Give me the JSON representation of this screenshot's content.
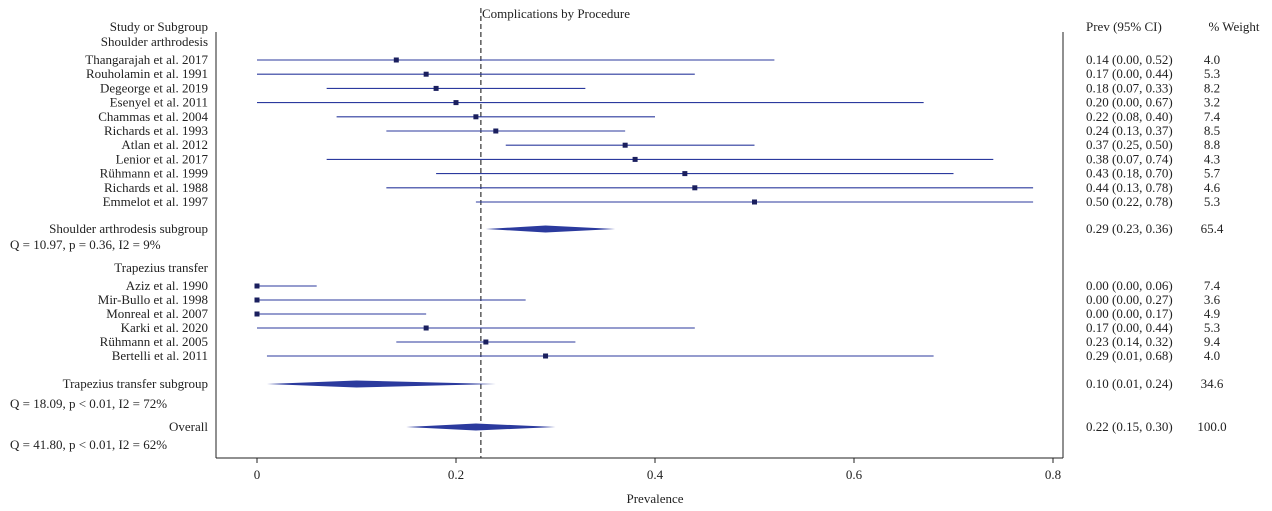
{
  "chart_data": {
    "type": "forest",
    "title": "Complications by Procedure",
    "xlabel": "Prevalence",
    "xlim": [
      -0.04,
      0.81
    ],
    "xticks": [
      0,
      0.2,
      0.4,
      0.6,
      0.8
    ],
    "xtick_labels": [
      "0",
      "0.2",
      "0.4",
      "0.6",
      "0.8"
    ],
    "reference_line": 0.225,
    "col_headers": {
      "study": "Study or Subgroup",
      "ci": "Prev (95% CI)",
      "weight": "% Weight"
    },
    "colors": {
      "line": "#2b3a9e",
      "marker": "#1a1f5e",
      "diamond": "#2b3a9e",
      "axis": "#222222"
    },
    "groups": [
      {
        "name": "Shoulder arthrodesis",
        "studies": [
          {
            "label": "Thangarajah et al. 2017",
            "est": 0.14,
            "lo": 0.0,
            "hi": 0.52,
            "ci_text": "0.14 (0.00, 0.52)",
            "weight": "4.0"
          },
          {
            "label": "Rouholamin et al. 1991",
            "est": 0.17,
            "lo": 0.0,
            "hi": 0.44,
            "ci_text": "0.17 (0.00, 0.44)",
            "weight": "5.3"
          },
          {
            "label": "Degeorge et al. 2019",
            "est": 0.18,
            "lo": 0.07,
            "hi": 0.33,
            "ci_text": "0.18 (0.07, 0.33)",
            "weight": "8.2"
          },
          {
            "label": "Esenyel et al. 2011",
            "est": 0.2,
            "lo": 0.0,
            "hi": 0.67,
            "ci_text": "0.20 (0.00, 0.67)",
            "weight": "3.2"
          },
          {
            "label": "Chammas et al. 2004",
            "est": 0.22,
            "lo": 0.08,
            "hi": 0.4,
            "ci_text": "0.22 (0.08, 0.40)",
            "weight": "7.4"
          },
          {
            "label": "Richards et al. 1993",
            "est": 0.24,
            "lo": 0.13,
            "hi": 0.37,
            "ci_text": "0.24 (0.13, 0.37)",
            "weight": "8.5"
          },
          {
            "label": "Atlan et al. 2012",
            "est": 0.37,
            "lo": 0.25,
            "hi": 0.5,
            "ci_text": "0.37 (0.25, 0.50)",
            "weight": "8.8"
          },
          {
            "label": "Lenior et al. 2017",
            "est": 0.38,
            "lo": 0.07,
            "hi": 0.74,
            "ci_text": "0.38 (0.07, 0.74)",
            "weight": "4.3"
          },
          {
            "label": "Rühmann et al. 1999",
            "est": 0.43,
            "lo": 0.18,
            "hi": 0.7,
            "ci_text": "0.43 (0.18, 0.70)",
            "weight": "5.7"
          },
          {
            "label": "Richards et al. 1988",
            "est": 0.44,
            "lo": 0.13,
            "hi": 0.78,
            "ci_text": "0.44 (0.13, 0.78)",
            "weight": "4.6"
          },
          {
            "label": "Emmelot et al. 1997",
            "est": 0.5,
            "lo": 0.22,
            "hi": 0.78,
            "ci_text": "0.50 (0.22, 0.78)",
            "weight": "5.3"
          }
        ],
        "subgroup": {
          "label": "Shoulder arthrodesis subgroup",
          "est": 0.29,
          "lo": 0.23,
          "hi": 0.36,
          "ci_text": "0.29 (0.23, 0.36)",
          "weight": "65.4",
          "stats": "Q = 10.97, p = 0.36, I2 = 9%"
        }
      },
      {
        "name": "Trapezius transfer",
        "studies": [
          {
            "label": "Aziz et al. 1990",
            "est": 0.0,
            "lo": 0.0,
            "hi": 0.06,
            "ci_text": "0.00 (0.00, 0.06)",
            "weight": "7.4"
          },
          {
            "label": "Mir-Bullo et al. 1998",
            "est": 0.0,
            "lo": 0.0,
            "hi": 0.27,
            "ci_text": "0.00 (0.00, 0.27)",
            "weight": "3.6"
          },
          {
            "label": "Monreal et al. 2007",
            "est": 0.0,
            "lo": 0.0,
            "hi": 0.17,
            "ci_text": "0.00 (0.00, 0.17)",
            "weight": "4.9"
          },
          {
            "label": "Karki et al. 2020",
            "est": 0.17,
            "lo": 0.0,
            "hi": 0.44,
            "ci_text": "0.17 (0.00, 0.44)",
            "weight": "5.3"
          },
          {
            "label": "Rühmann et al. 2005",
            "est": 0.23,
            "lo": 0.14,
            "hi": 0.32,
            "ci_text": "0.23 (0.14, 0.32)",
            "weight": "9.4"
          },
          {
            "label": "Bertelli et al. 2011",
            "est": 0.29,
            "lo": 0.01,
            "hi": 0.68,
            "ci_text": "0.29 (0.01, 0.68)",
            "weight": "4.0"
          }
        ],
        "subgroup": {
          "label": "Trapezius transfer subgroup",
          "est": 0.1,
          "lo": 0.01,
          "hi": 0.24,
          "ci_text": "0.10 (0.01, 0.24)",
          "weight": "34.6",
          "stats": "Q = 18.09, p < 0.01, I2 = 72%"
        }
      }
    ],
    "overall": {
      "label": "Overall",
      "est": 0.22,
      "lo": 0.15,
      "hi": 0.3,
      "ci_text": "0.22 (0.15, 0.30)",
      "weight": "100.0",
      "stats": "Q = 41.80, p < 0.01, I2 = 62%"
    }
  }
}
